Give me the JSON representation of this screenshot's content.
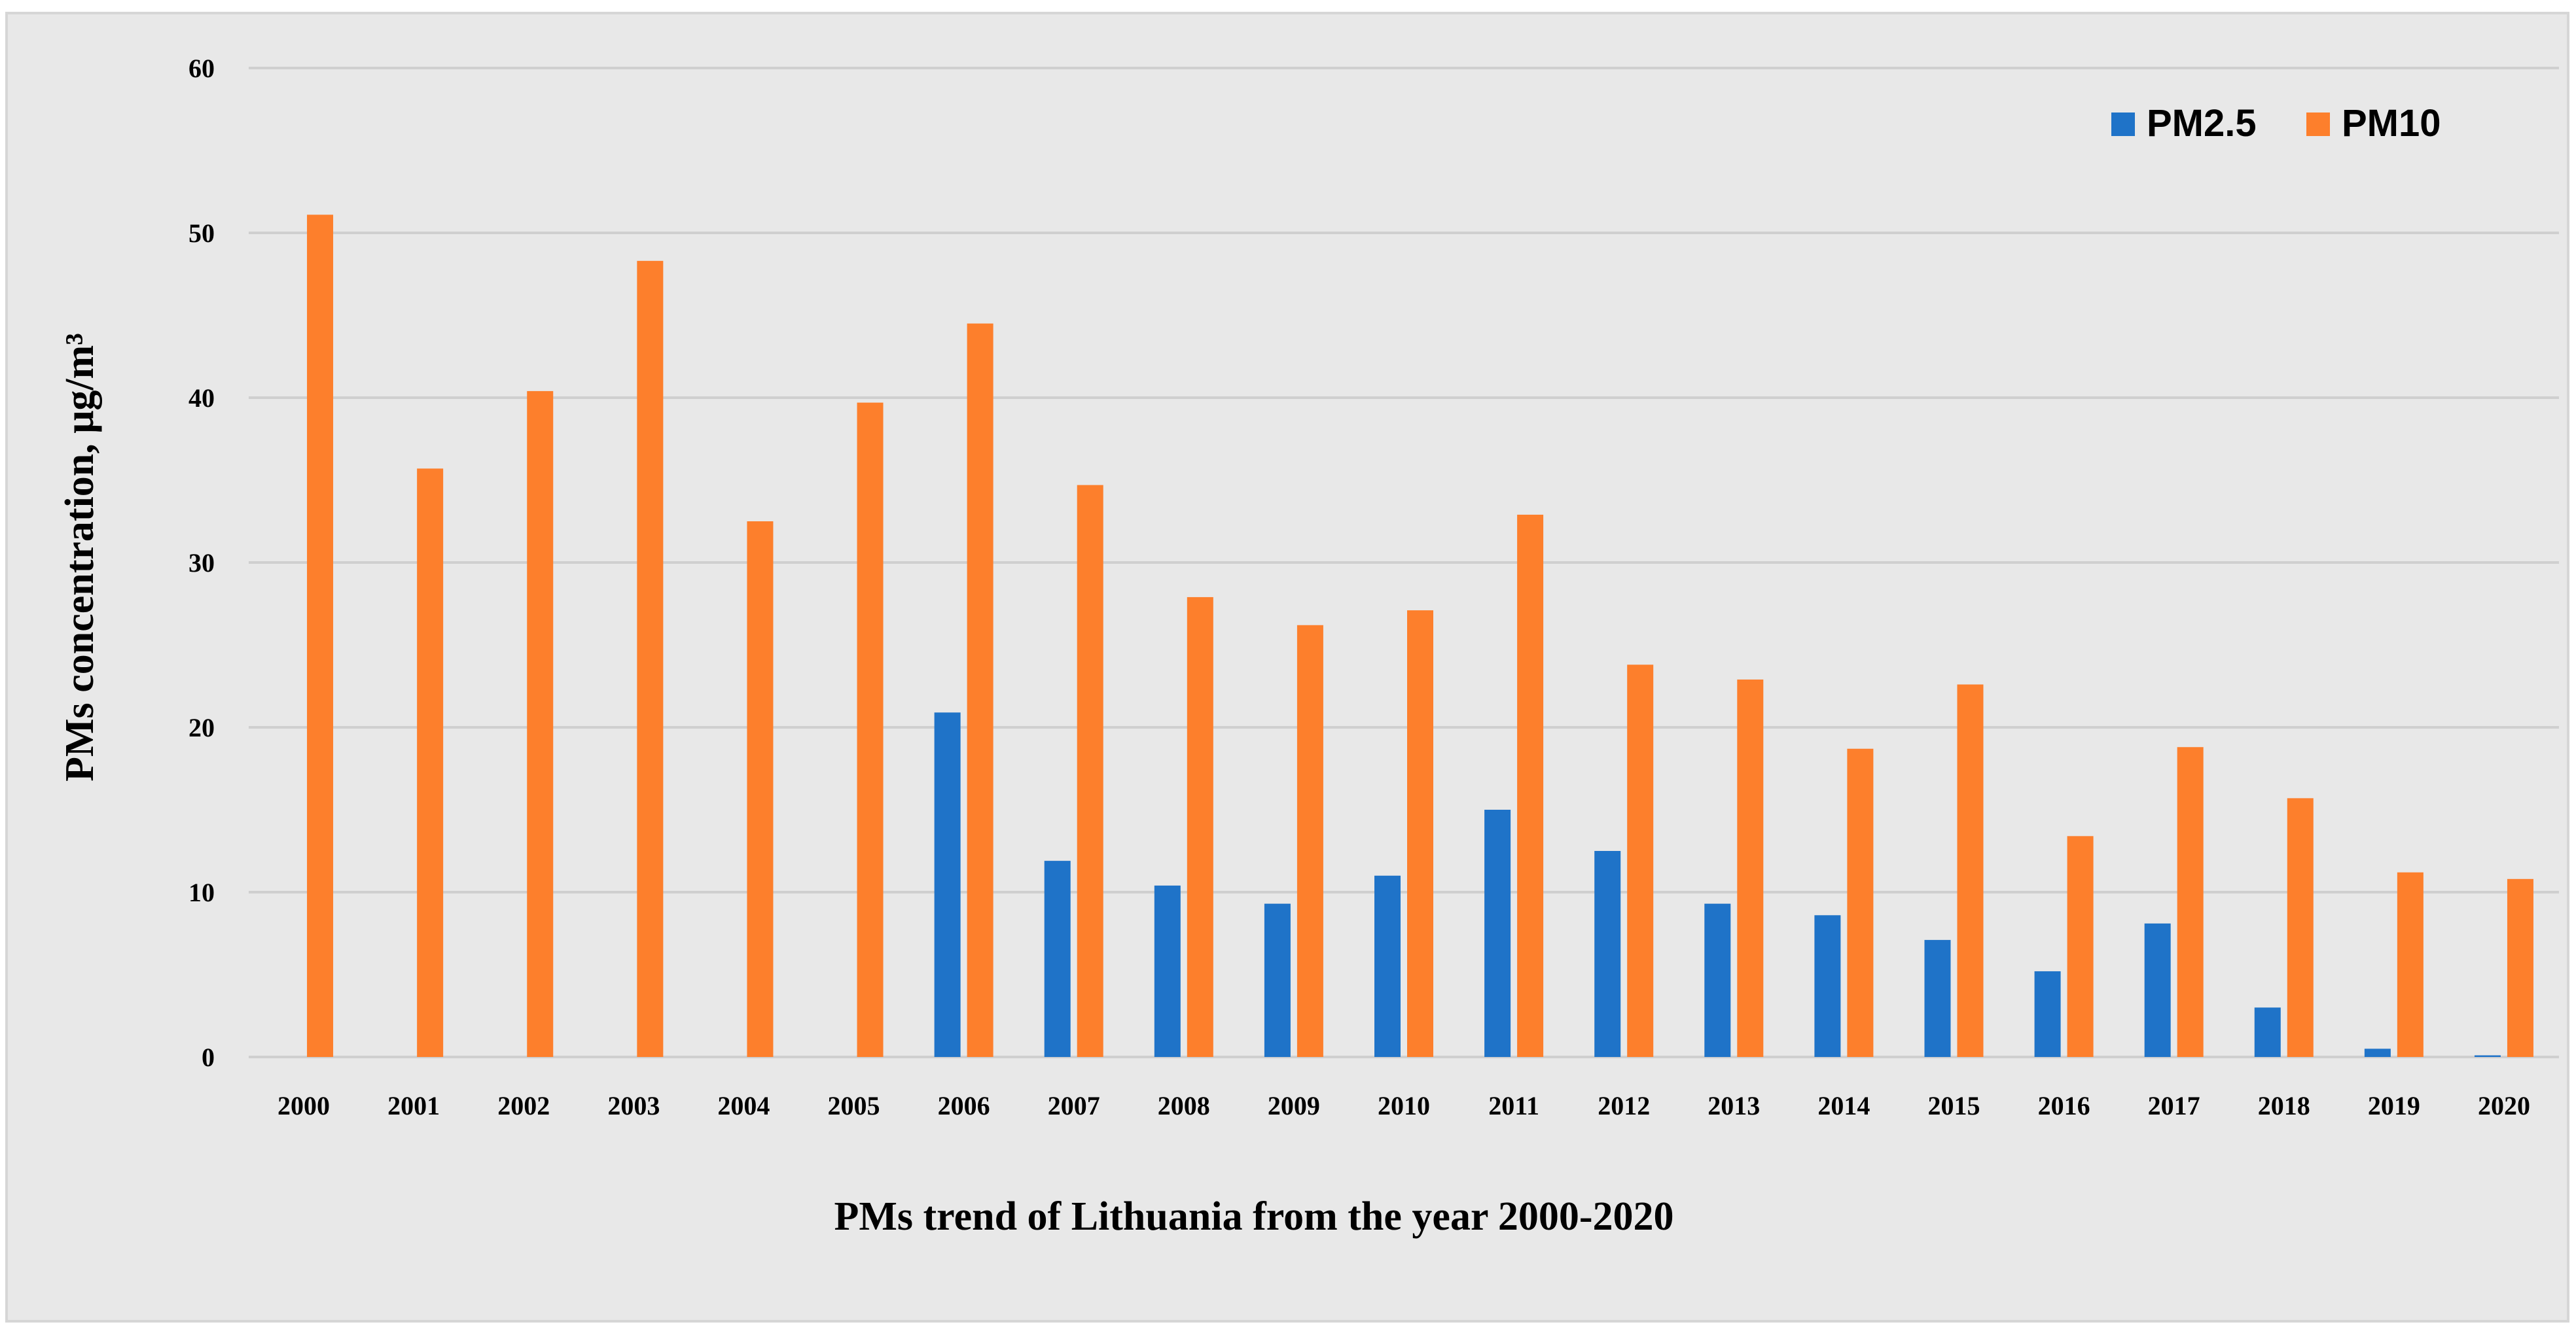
{
  "chart_data": {
    "type": "bar",
    "title": "",
    "xlabel": "PMs trend of Lithuania from the year 2000-2020",
    "ylabel": "PMs concentration, μg/m³",
    "ylim": [
      0,
      60
    ],
    "yticks": [
      0,
      10,
      20,
      30,
      40,
      50,
      60
    ],
    "grid": true,
    "legend_position": "top-right",
    "categories": [
      "2000",
      "2001",
      "2002",
      "2003",
      "2004",
      "2005",
      "2006",
      "2007",
      "2008",
      "2009",
      "2010",
      "2011",
      "2012",
      "2013",
      "2014",
      "2015",
      "2016",
      "2017",
      "2018",
      "2019",
      "2020"
    ],
    "series": [
      {
        "name": "PM2.5",
        "color": "#1f73c8",
        "values": [
          null,
          null,
          null,
          null,
          null,
          null,
          20.9,
          11.9,
          10.4,
          9.3,
          11.0,
          15.0,
          12.5,
          9.3,
          8.6,
          7.1,
          5.2,
          8.1,
          3.0,
          0.5,
          0.1
        ]
      },
      {
        "name": "PM10",
        "color": "#fd7f2c",
        "values": [
          51.1,
          35.7,
          40.4,
          48.3,
          32.5,
          39.7,
          44.5,
          34.7,
          27.9,
          26.2,
          27.1,
          32.9,
          23.8,
          22.9,
          18.7,
          22.6,
          13.4,
          18.8,
          15.7,
          11.2,
          10.8
        ]
      }
    ],
    "colors": {
      "background": "#e8e8e8",
      "grid": "#cfcfcf",
      "border": "#d6d6d6"
    }
  }
}
